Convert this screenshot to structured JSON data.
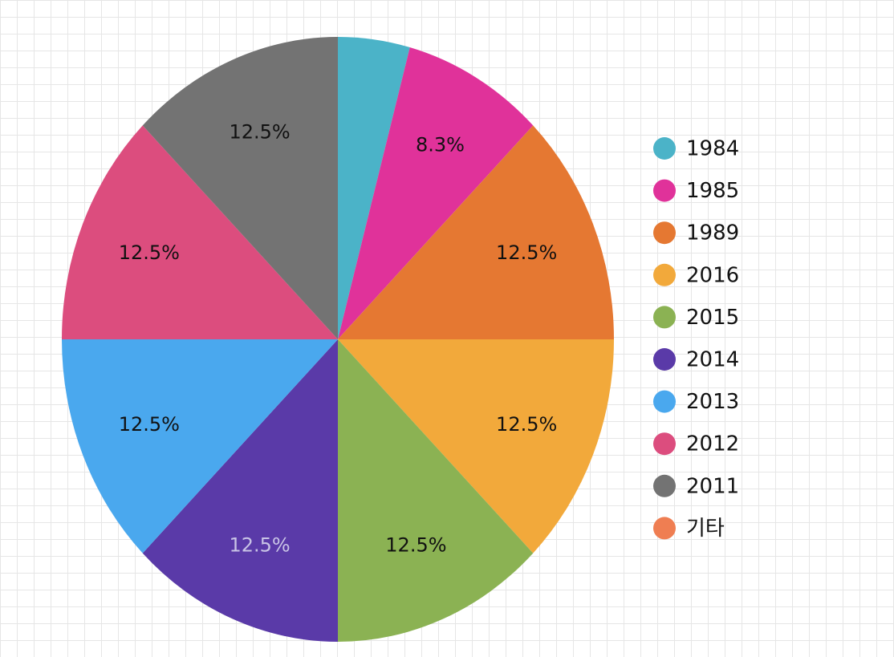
{
  "chart_data": {
    "type": "pie",
    "categories": [
      "1984",
      "1985",
      "1989",
      "2016",
      "2015",
      "2014",
      "2013",
      "2012",
      "2011",
      "기타"
    ],
    "values": [
      4.2,
      8.3,
      12.5,
      12.5,
      12.5,
      12.5,
      12.5,
      12.5,
      12.5,
      0
    ],
    "value_labels": [
      null,
      "8.3%",
      "12.5%",
      "12.5%",
      "12.5%",
      "12.5%",
      "12.5%",
      "12.5%",
      "12.5%",
      null
    ],
    "colors": [
      "#4bb3c8",
      "#e0329a",
      "#e57832",
      "#f2a93b",
      "#8bb253",
      "#5a3aa8",
      "#4aa8ee",
      "#dc4d7e",
      "#737373",
      "#ef7e52"
    ],
    "legend": "right"
  }
}
